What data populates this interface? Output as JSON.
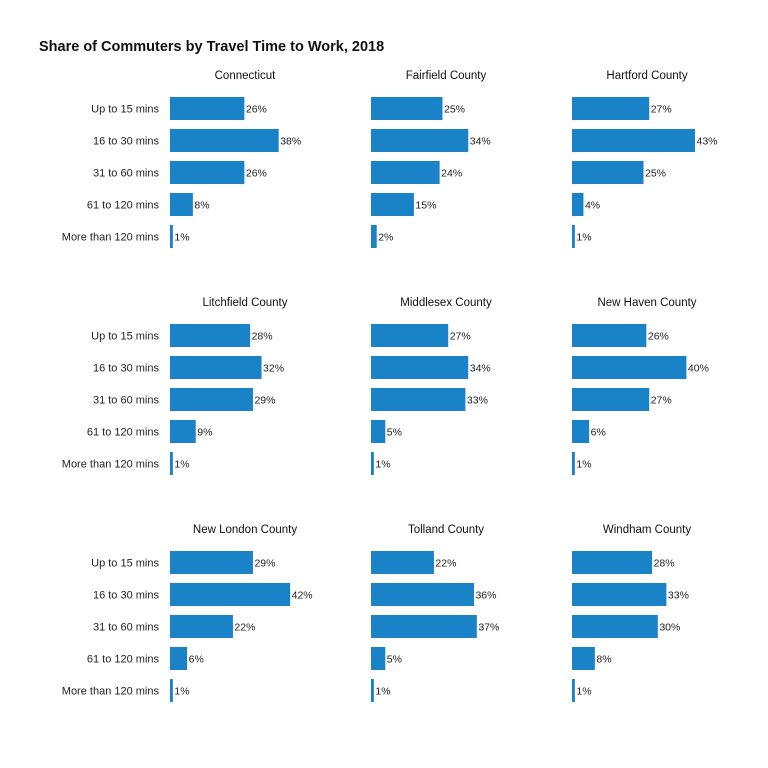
{
  "chart_data": {
    "type": "bar",
    "orientation": "horizontal",
    "title": "Share of Commuters by Travel Time to Work, 2018",
    "categories": [
      "Up to 15 mins",
      "16 to 30 mins",
      "31 to 60 mins",
      "61 to 120 mins",
      "More than 120 mins"
    ],
    "value_suffix": "%",
    "xlim": [
      0,
      43
    ],
    "bar_color": "#1a82c7",
    "grid": false,
    "facets": [
      {
        "name": "Connecticut",
        "values": [
          26,
          38,
          26,
          8,
          1
        ]
      },
      {
        "name": "Fairfield County",
        "values": [
          25,
          34,
          24,
          15,
          2
        ]
      },
      {
        "name": "Hartford County",
        "values": [
          27,
          43,
          25,
          4,
          1
        ]
      },
      {
        "name": "Litchfield County",
        "values": [
          28,
          32,
          29,
          9,
          1
        ]
      },
      {
        "name": "Middlesex County",
        "values": [
          27,
          34,
          33,
          5,
          1
        ]
      },
      {
        "name": "New Haven County",
        "values": [
          26,
          40,
          27,
          6,
          1
        ]
      },
      {
        "name": "New London County",
        "values": [
          29,
          42,
          22,
          6,
          1
        ]
      },
      {
        "name": "Tolland County",
        "values": [
          22,
          36,
          37,
          5,
          1
        ]
      },
      {
        "name": "Windham County",
        "values": [
          28,
          33,
          30,
          8,
          1
        ]
      }
    ]
  }
}
